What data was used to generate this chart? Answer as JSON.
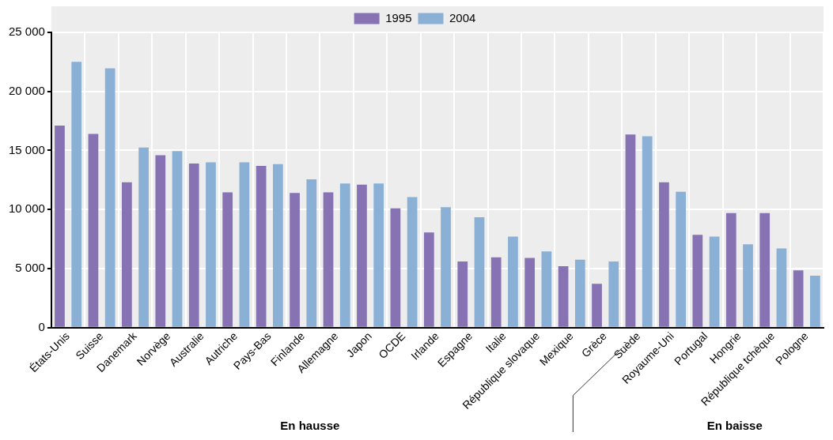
{
  "chart_data": {
    "type": "bar",
    "categories": [
      "États-Unis",
      "Suisse",
      "Danemark",
      "Norvège",
      "Australie",
      "Autriche",
      "Pays-Bas",
      "Finlande",
      "Allemagne",
      "Japon",
      "OCDE",
      "Irlande",
      "Espagne",
      "Italie",
      "République slovaque",
      "Mexique",
      "Grèce",
      "Suède",
      "Royaume-Uni",
      "Portugal",
      "Hongrie",
      "République tchèque",
      "Pologne"
    ],
    "series": [
      {
        "name": "1995",
        "color": "#8773b3",
        "values": [
          17100,
          16400,
          12300,
          14600,
          13900,
          11450,
          13700,
          11400,
          11450,
          12100,
          10100,
          8050,
          5600,
          5950,
          5900,
          5200,
          3700,
          16350,
          12300,
          7850,
          9700,
          9700,
          4850
        ]
      },
      {
        "name": "2004",
        "color": "#8ab0d6",
        "values": [
          22500,
          21950,
          15250,
          14950,
          14000,
          14000,
          13850,
          12550,
          12200,
          12200,
          11050,
          10200,
          9350,
          7700,
          6450,
          5750,
          5600,
          16200,
          11500,
          7700,
          7050,
          6700,
          4400
        ]
      }
    ],
    "ylim": [
      0,
      25000
    ],
    "yticks": [
      {
        "value": 0,
        "label": "0"
      },
      {
        "value": 5000,
        "label": "5 000"
      },
      {
        "value": 10000,
        "label": "10 000"
      },
      {
        "value": 15000,
        "label": "15 000"
      },
      {
        "value": 20000,
        "label": "20 000"
      },
      {
        "value": 25000,
        "label": "25 000"
      }
    ],
    "grid": true,
    "legend": "top",
    "annotations": [
      "En hausse",
      "En baisse"
    ]
  }
}
